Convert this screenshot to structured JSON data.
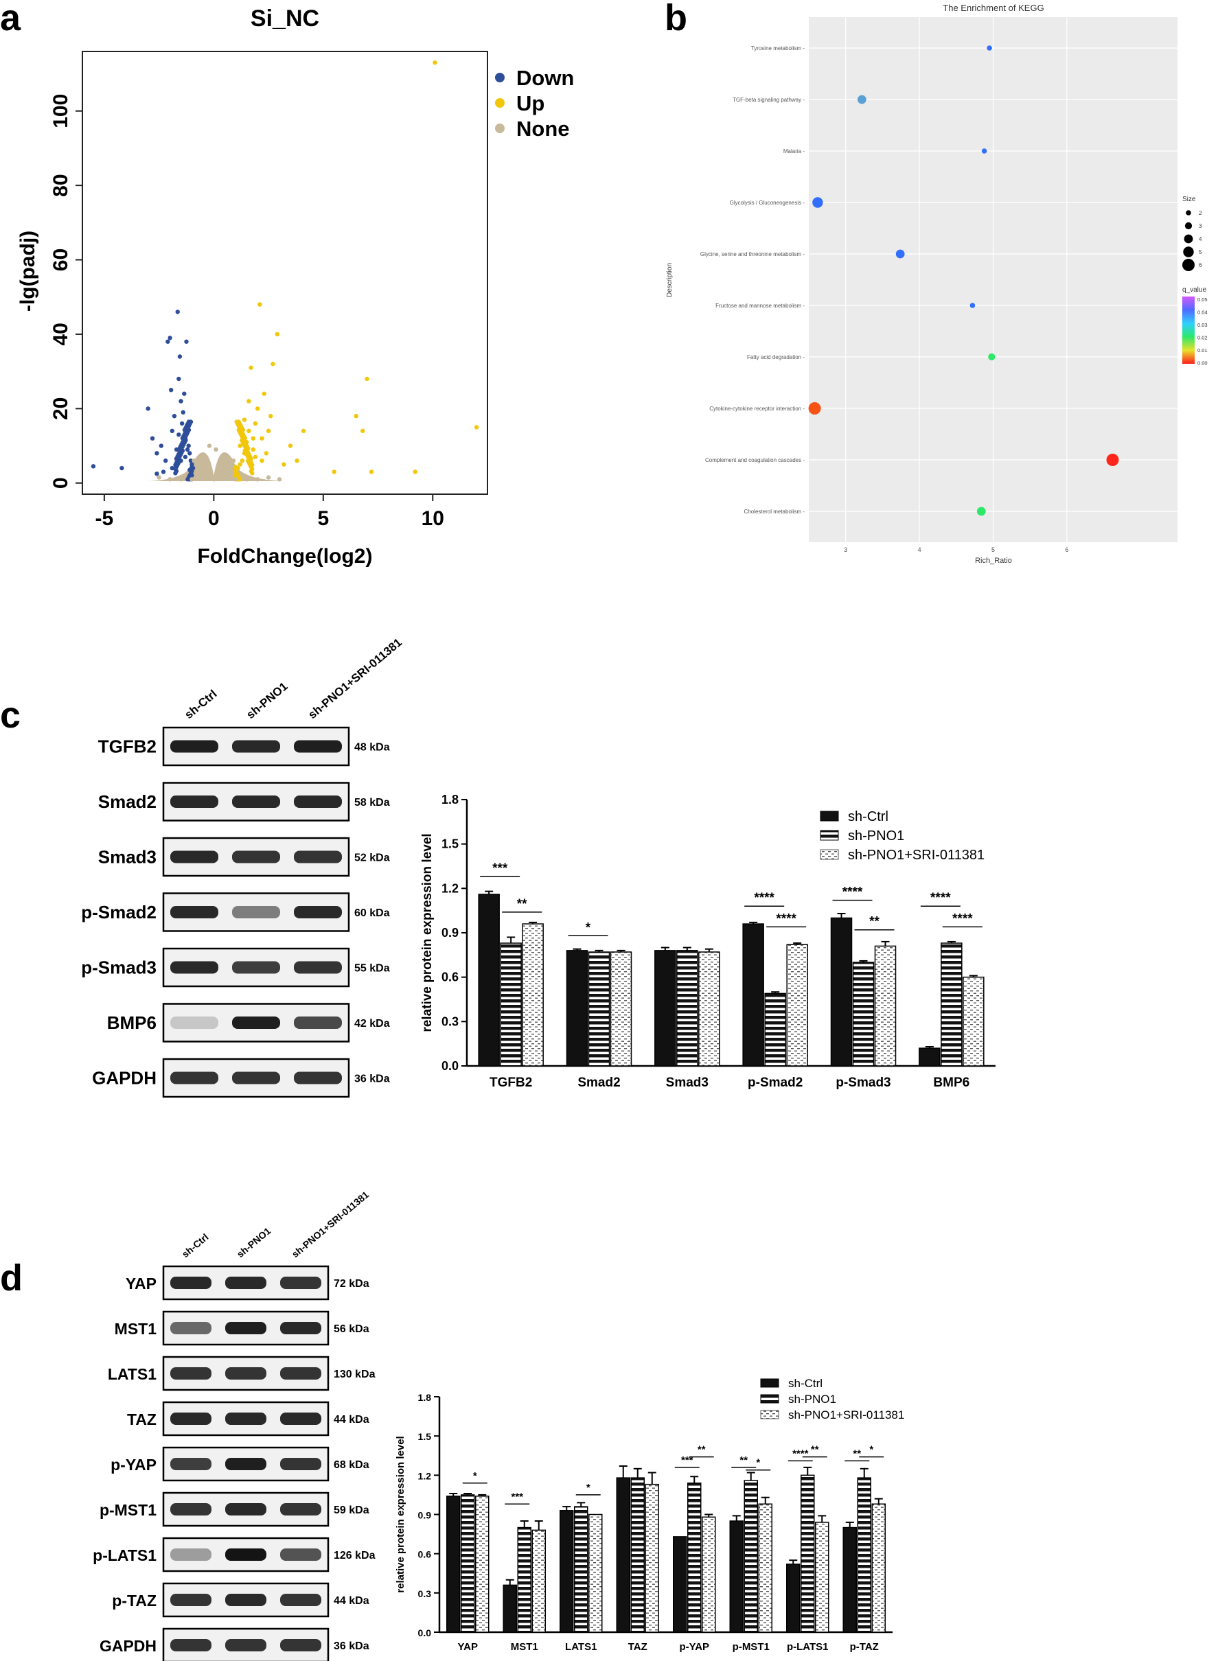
{
  "panels": {
    "a": "a",
    "b": "b",
    "c": "c",
    "d": "d"
  },
  "colors": {
    "down": "#2e4e9a",
    "up": "#f2c70a",
    "none": "#c8b99b",
    "panel_bg": "#ebebeb",
    "grid": "#ffffff"
  },
  "chart_data": [
    {
      "id": "a",
      "type": "scatter",
      "title": "Si_NC",
      "xlabel": "FoldChange(log2)",
      "ylabel": "-lg(padj)",
      "xlim": [
        -6,
        12.5
      ],
      "ylim": [
        -3,
        116
      ],
      "xticks": [
        -5,
        0,
        5,
        10
      ],
      "yticks": [
        0,
        20,
        40,
        60,
        80,
        100
      ],
      "legend": [
        "Down",
        "Up",
        "None"
      ],
      "series": [
        {
          "name": "Down",
          "points": [
            [
              -5.5,
              4.5
            ],
            [
              -4.2,
              4
            ],
            [
              -3,
              20
            ],
            [
              -2.8,
              12
            ],
            [
              -2.6,
              8
            ],
            [
              -2.4,
              10
            ],
            [
              -2.2,
              6
            ],
            [
              -2.1,
              38
            ],
            [
              -2,
              39
            ],
            [
              -1.95,
              25
            ],
            [
              -1.9,
              14
            ],
            [
              -1.8,
              18
            ],
            [
              -1.7,
              9
            ],
            [
              -1.65,
              46
            ],
            [
              -1.6,
              28
            ],
            [
              -1.55,
              34
            ],
            [
              -1.5,
              22
            ],
            [
              -1.45,
              16
            ],
            [
              -1.4,
              19
            ],
            [
              -1.35,
              24
            ],
            [
              -1.3,
              12
            ],
            [
              -1.25,
              38
            ],
            [
              -1.2,
              14
            ],
            [
              -1.15,
              10
            ],
            [
              -1.1,
              8
            ],
            [
              -1.05,
              6
            ],
            [
              -1.0,
              5
            ],
            [
              -0.95,
              4
            ],
            [
              -1.3,
              7
            ],
            [
              -1.5,
              6
            ],
            [
              -1.7,
              5
            ],
            [
              -1.9,
              4
            ],
            [
              -2.3,
              3
            ],
            [
              -2.6,
              2.5
            ],
            [
              -1.4,
              11
            ],
            [
              -1.2,
              9
            ],
            [
              -1.6,
              13
            ],
            [
              -1.1,
              3.5
            ]
          ]
        },
        {
          "name": "Up",
          "points": [
            [
              10.1,
              113
            ],
            [
              12,
              15
            ],
            [
              7,
              28
            ],
            [
              6.5,
              18
            ],
            [
              6.8,
              14
            ],
            [
              9.2,
              3
            ],
            [
              7.2,
              3
            ],
            [
              5.5,
              3
            ],
            [
              4.1,
              14
            ],
            [
              3.8,
              6
            ],
            [
              3.5,
              10
            ],
            [
              3.2,
              5
            ],
            [
              2.9,
              40
            ],
            [
              2.7,
              32
            ],
            [
              2.6,
              18
            ],
            [
              2.5,
              14
            ],
            [
              2.3,
              24
            ],
            [
              2.2,
              12
            ],
            [
              2.1,
              48
            ],
            [
              2.0,
              20
            ],
            [
              1.9,
              16
            ],
            [
              1.8,
              9
            ],
            [
              1.7,
              31
            ],
            [
              1.6,
              14
            ],
            [
              1.5,
              11
            ],
            [
              1.4,
              8
            ],
            [
              1.3,
              6
            ],
            [
              1.2,
              5
            ],
            [
              1.1,
              4
            ],
            [
              1.0,
              3.5
            ],
            [
              1.6,
              22
            ],
            [
              1.9,
              7
            ],
            [
              2.4,
              8
            ],
            [
              2.2,
              6
            ],
            [
              1.4,
              17
            ],
            [
              1.2,
              10
            ],
            [
              1.8,
              12
            ]
          ]
        },
        {
          "name": "None",
          "points": [
            [
              -0.9,
              6
            ],
            [
              -0.7,
              5
            ],
            [
              -0.5,
              3
            ],
            [
              -0.3,
              2
            ],
            [
              0,
              1
            ],
            [
              0.3,
              2
            ],
            [
              0.5,
              3
            ],
            [
              0.7,
              5
            ],
            [
              0.9,
              6
            ],
            [
              -2.5,
              1.5
            ],
            [
              -2,
              1
            ],
            [
              -1.5,
              1
            ],
            [
              -1,
              1
            ],
            [
              1,
              1
            ],
            [
              1.5,
              1
            ],
            [
              2,
              1
            ],
            [
              2.5,
              1.5
            ],
            [
              3,
              1
            ],
            [
              0.1,
              9
            ],
            [
              -0.2,
              10
            ]
          ]
        }
      ]
    },
    {
      "id": "b",
      "type": "scatter",
      "title": "The Enrichment of KEGG",
      "xlabel": "Rich_Ratio",
      "ylabel": "Description",
      "xlim": [
        2.5,
        7.5
      ],
      "xticks": [
        3,
        4,
        5,
        6
      ],
      "terms": [
        "Tyrosine metabolism",
        "TGF-beta signaling pathway",
        "Malaria",
        "Glycolysis / Gluconeogenesis",
        "Glycine, serine and threonine metabolism",
        "Fructose and mannose metabolism",
        "Fatty acid degradation",
        "Cytokine-cytokine receptor interaction",
        "Complement and coagulation cascades",
        "Cholesterol metabolism"
      ],
      "points": [
        {
          "term": "Tyrosine metabolism",
          "x": 4.95,
          "size": 2,
          "q": 0.04
        },
        {
          "term": "TGF-beta signaling pathway",
          "x": 3.22,
          "size": 4,
          "q": 0.045
        },
        {
          "term": "Malaria",
          "x": 4.88,
          "size": 2,
          "q": 0.04
        },
        {
          "term": "Glycolysis / Gluconeogenesis",
          "x": 2.62,
          "size": 5,
          "q": 0.04
        },
        {
          "term": "Glycine, serine and threonine metabolism",
          "x": 3.74,
          "size": 4,
          "q": 0.04
        },
        {
          "term": "Fructose and mannose metabolism",
          "x": 4.72,
          "size": 2,
          "q": 0.04
        },
        {
          "term": "Fatty acid degradation",
          "x": 4.98,
          "size": 3,
          "q": 0.015
        },
        {
          "term": "Cytokine-cytokine receptor interaction",
          "x": 2.58,
          "size": 6,
          "q": 0.006
        },
        {
          "term": "Complement and coagulation cascades",
          "x": 6.62,
          "size": 6,
          "q": 0.001
        },
        {
          "term": "Cholesterol metabolism",
          "x": 4.84,
          "size": 4,
          "q": 0.015
        }
      ],
      "size_legend": {
        "title": "Size",
        "values": [
          "2",
          "3",
          "4",
          "5",
          "6"
        ]
      },
      "color_legend": {
        "title": "q_value",
        "ticks": [
          "0.05",
          "0.04",
          "0.03",
          "0.02",
          "0.01",
          "0.00"
        ]
      }
    },
    {
      "id": "c",
      "type": "bar",
      "ylabel": "relative protein expression level",
      "ylim": [
        0,
        1.8
      ],
      "yticks": [
        "0.0",
        "0.3",
        "0.6",
        "0.9",
        "1.2",
        "1.5",
        "1.8"
      ],
      "categories": [
        "TGFB2",
        "Smad2",
        "Smad3",
        "p-Smad2",
        "p-Smad3",
        "BMP6"
      ],
      "series": [
        {
          "name": "sh-Ctrl",
          "values": [
            1.16,
            0.78,
            0.78,
            0.96,
            1.0,
            0.12
          ],
          "errors": [
            0.02,
            0.01,
            0.02,
            0.01,
            0.03,
            0.01
          ]
        },
        {
          "name": "sh-PNO1",
          "values": [
            0.83,
            0.77,
            0.78,
            0.49,
            0.7,
            0.83
          ],
          "errors": [
            0.04,
            0.01,
            0.02,
            0.01,
            0.01,
            0.01
          ]
        },
        {
          "name": "sh-PNO1+SRI-011381",
          "values": [
            0.96,
            0.77,
            0.77,
            0.82,
            0.81,
            0.6
          ],
          "errors": [
            0.01,
            0.01,
            0.02,
            0.01,
            0.03,
            0.01
          ]
        }
      ],
      "significance": [
        {
          "cat": 0,
          "from": 0,
          "to": 1,
          "label": "***",
          "y": 1.28
        },
        {
          "cat": 0,
          "from": 1,
          "to": 2,
          "label": "**",
          "y": 1.04
        },
        {
          "cat": 1,
          "from": 0,
          "to": 1,
          "label": "*",
          "y": 0.88
        },
        {
          "cat": 3,
          "from": 0,
          "to": 1,
          "label": "****",
          "y": 1.08
        },
        {
          "cat": 3,
          "from": 1,
          "to": 2,
          "label": "****",
          "y": 0.94
        },
        {
          "cat": 4,
          "from": 0,
          "to": 1,
          "label": "****",
          "y": 1.12
        },
        {
          "cat": 4,
          "from": 1,
          "to": 2,
          "label": "**",
          "y": 0.92
        },
        {
          "cat": 5,
          "from": 0,
          "to": 1,
          "label": "****",
          "y": 1.08
        },
        {
          "cat": 5,
          "from": 1,
          "to": 2,
          "label": "****",
          "y": 0.94
        }
      ],
      "blot": {
        "lanes": [
          "sh-Ctrl",
          "sh-PNO1",
          "sh-PNO1+SRI-011381"
        ],
        "rows": [
          {
            "label": "TGFB2",
            "kda": "48 kDa",
            "intensity": [
              0.95,
              0.9,
              0.95
            ]
          },
          {
            "label": "Smad2",
            "kda": "58 kDa",
            "intensity": [
              0.9,
              0.9,
              0.9
            ]
          },
          {
            "label": "Smad3",
            "kda": "52 kDa",
            "intensity": [
              0.9,
              0.85,
              0.85
            ]
          },
          {
            "label": "p-Smad2",
            "kda": "60 kDa",
            "intensity": [
              0.9,
              0.5,
              0.9
            ]
          },
          {
            "label": "p-Smad3",
            "kda": "55 kDa",
            "intensity": [
              0.9,
              0.8,
              0.85
            ]
          },
          {
            "label": "BMP6",
            "kda": "42 kDa",
            "intensity": [
              0.15,
              0.95,
              0.75
            ]
          },
          {
            "label": "GAPDH",
            "kda": "36 kDa",
            "intensity": [
              0.85,
              0.85,
              0.85
            ]
          }
        ]
      }
    },
    {
      "id": "d",
      "type": "bar",
      "ylabel": "relative protein expression level",
      "ylim": [
        0,
        1.8
      ],
      "yticks": [
        "0.0",
        "0.3",
        "0.6",
        "0.9",
        "1.2",
        "1.5",
        "1.8"
      ],
      "categories": [
        "YAP",
        "MST1",
        "LATS1",
        "TAZ",
        "p-YAP",
        "p-MST1",
        "p-LATS1",
        "p-TAZ"
      ],
      "series": [
        {
          "name": "sh-Ctrl",
          "values": [
            1.04,
            0.36,
            0.93,
            1.18,
            0.73,
            0.85,
            0.52,
            0.8
          ],
          "errors": [
            0.02,
            0.04,
            0.03,
            0.09,
            0.0,
            0.04,
            0.03,
            0.04
          ]
        },
        {
          "name": "sh-PNO1",
          "values": [
            1.05,
            0.8,
            0.96,
            1.18,
            1.14,
            1.16,
            1.2,
            1.18
          ],
          "errors": [
            0.01,
            0.05,
            0.03,
            0.07,
            0.05,
            0.06,
            0.06,
            0.07
          ]
        },
        {
          "name": "sh-PNO1+SRI-011381",
          "values": [
            1.04,
            0.78,
            0.9,
            1.13,
            0.88,
            0.98,
            0.84,
            0.98
          ],
          "errors": [
            0.01,
            0.07,
            0.0,
            0.09,
            0.02,
            0.05,
            0.05,
            0.04
          ]
        }
      ],
      "significance": [
        {
          "cat": 0,
          "from": 1,
          "to": 2,
          "label": "*",
          "y": 1.14
        },
        {
          "cat": 1,
          "from": 0,
          "to": 1,
          "label": "***",
          "y": 0.98
        },
        {
          "cat": 2,
          "from": 1,
          "to": 2,
          "label": "*",
          "y": 1.05
        },
        {
          "cat": 4,
          "from": 0,
          "to": 1,
          "label": "***",
          "y": 1.26
        },
        {
          "cat": 4,
          "from": 1,
          "to": 2,
          "label": "**",
          "y": 1.34
        },
        {
          "cat": 5,
          "from": 0,
          "to": 1,
          "label": "**",
          "y": 1.26
        },
        {
          "cat": 5,
          "from": 1,
          "to": 2,
          "label": "*",
          "y": 1.24
        },
        {
          "cat": 6,
          "from": 0,
          "to": 1,
          "label": "****",
          "y": 1.31
        },
        {
          "cat": 6,
          "from": 1,
          "to": 2,
          "label": "**",
          "y": 1.34
        },
        {
          "cat": 7,
          "from": 0,
          "to": 1,
          "label": "**",
          "y": 1.31
        },
        {
          "cat": 7,
          "from": 1,
          "to": 2,
          "label": "*",
          "y": 1.34
        }
      ],
      "blot": {
        "lanes": [
          "sh-Ctrl",
          "sh-PNO1",
          "sh-PNO1+SRI-011381"
        ],
        "rows": [
          {
            "label": "YAP",
            "kda": "72 kDa",
            "intensity": [
              0.9,
              0.9,
              0.85
            ]
          },
          {
            "label": "MST1",
            "kda": "56 kDa",
            "intensity": [
              0.6,
              0.95,
              0.9
            ]
          },
          {
            "label": "LATS1",
            "kda": "130 kDa",
            "intensity": [
              0.85,
              0.85,
              0.85
            ]
          },
          {
            "label": "TAZ",
            "kda": "44 kDa",
            "intensity": [
              0.9,
              0.9,
              0.9
            ]
          },
          {
            "label": "p-YAP",
            "kda": "68 kDa",
            "intensity": [
              0.8,
              0.95,
              0.85
            ]
          },
          {
            "label": "p-MST1",
            "kda": "59 kDa",
            "intensity": [
              0.85,
              0.9,
              0.85
            ]
          },
          {
            "label": "p-LATS1",
            "kda": "126 kDa",
            "intensity": [
              0.35,
              1.0,
              0.7
            ]
          },
          {
            "label": "p-TAZ",
            "kda": "44 kDa",
            "intensity": [
              0.85,
              0.9,
              0.85
            ]
          },
          {
            "label": "GAPDH",
            "kda": "36 kDa",
            "intensity": [
              0.85,
              0.85,
              0.85
            ]
          }
        ]
      }
    }
  ]
}
